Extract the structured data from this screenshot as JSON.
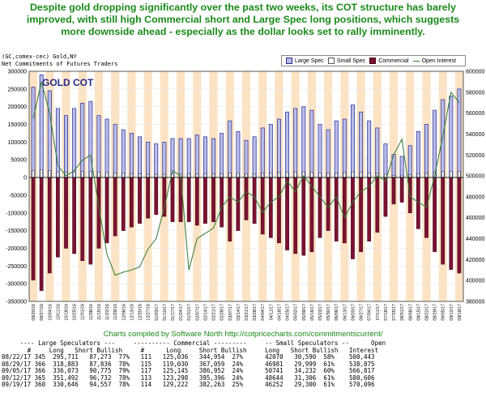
{
  "headline": [
    "Despite gold dropping significantly over the past two weeks, its COT structure has barely",
    "improved, with still high Commercial short and Large Spec long positions, which suggests",
    "more downside ahead - especially as the dollar looks set to rally imminently."
  ],
  "header": {
    "line1": "(GC,comex-cec) Gold,NY",
    "line2": "Net Commitments of Futures Traders"
  },
  "legend": [
    {
      "label": "Large Spec",
      "swatch": "ls"
    },
    {
      "label": "Small Spec",
      "swatch": "ss"
    },
    {
      "label": "Commercial",
      "swatch": "cm"
    },
    {
      "label": "Open Interest",
      "swatch": "oi"
    }
  ],
  "credit": "Charts compiled by Software North  http://cotpricecharts.com/commitmentscurrent/",
  "table": {
    "header1": "     ---- Large Speculators ---     ---------- Commercial ---------     -- Small Speculators --      Open",
    "header2": "       #     Long   Short Bullish     #      Long     Short Bullish     Long   Short Bullish   Interest",
    "rows": [
      "08/22/17 345  295,711   87,273  77%   111   125,036   344,954  27%      42070   30,590  58%    500,443",
      "08/29/17 366  318,883   87,836  78%   115   119,030   367,059  24%      46981   29,999  61%    538,875",
      "09/05/17 366  336,073   90,775  79%   117   125,145   386,952  24%      50741   34,232  60%    566,817",
      "09/12/17 365  351,492   96,732  78%   113   123,298   395,396  24%      48644   31,306  61%    580,606",
      "09/19/17 360  330,646   94,557  78%   114   129,222   382,263  25%      46252   29,300  61%    570,096"
    ]
  },
  "chart_data": {
    "type": "bar",
    "title": "GOLD COT",
    "x": [
      "09/20/16",
      "09/27/16",
      "10/04/16",
      "10/11/16",
      "10/18/16",
      "10/25/16",
      "11/01/16",
      "11/08/16",
      "11/15/16",
      "11/22/16",
      "11/29/16",
      "12/06/16",
      "12/13/16",
      "12/20/16",
      "12/27/16",
      "01/03/17",
      "01/10/17",
      "01/17/17",
      "01/24/17",
      "01/31/17",
      "02/07/17",
      "02/14/17",
      "02/21/17",
      "02/28/17",
      "03/07/17",
      "03/14/17",
      "03/21/17",
      "03/28/17",
      "04/04/17",
      "04/11/17",
      "04/18/17",
      "04/25/17",
      "05/02/17",
      "05/09/17",
      "05/16/17",
      "05/23/17",
      "05/30/17",
      "06/06/17",
      "06/13/17",
      "06/20/17",
      "06/27/17",
      "07/04/17",
      "07/11/17",
      "07/18/17",
      "07/25/17",
      "08/01/17",
      "08/08/17",
      "08/15/17",
      "08/22/17",
      "08/29/17",
      "09/05/17",
      "09/12/17",
      "09/19/17"
    ],
    "y_left": {
      "min": -350000,
      "max": 300000,
      "step": 50000
    },
    "y_right": {
      "min": 380000,
      "max": 600000,
      "step": 20000
    },
    "series": [
      {
        "name": "Large Spec",
        "color": "#b8bbe8",
        "values": [
          255000,
          290000,
          245000,
          195000,
          175000,
          195000,
          210000,
          215000,
          175000,
          165000,
          150000,
          135000,
          125000,
          115000,
          100000,
          95000,
          100000,
          110000,
          110000,
          110000,
          120000,
          115000,
          110000,
          125000,
          160000,
          130000,
          105000,
          115000,
          140000,
          150000,
          165000,
          185000,
          195000,
          200000,
          190000,
          150000,
          135000,
          160000,
          165000,
          205000,
          185000,
          160000,
          140000,
          95000,
          65000,
          60000,
          90000,
          130000,
          150000,
          190000,
          220000,
          230000,
          250000
        ]
      },
      {
        "name": "Small Spec",
        "color": "#ffffff",
        "values": [
          20000,
          22000,
          20000,
          16000,
          15000,
          16000,
          17000,
          17000,
          15000,
          14000,
          13000,
          12000,
          11000,
          10000,
          9000,
          9000,
          9000,
          10000,
          10000,
          10000,
          11000,
          11000,
          10000,
          11000,
          13000,
          12000,
          10000,
          10000,
          12000,
          13000,
          14000,
          15000,
          16000,
          16000,
          15000,
          13000,
          12000,
          13000,
          14000,
          16000,
          15000,
          13000,
          12000,
          9000,
          6000,
          5000,
          8000,
          11000,
          12000,
          15000,
          17000,
          17000,
          17000
        ]
      },
      {
        "name": "Commercial",
        "color": "#7a1230",
        "values": [
          -290000,
          -320000,
          -270000,
          -225000,
          -200000,
          -215000,
          -235000,
          -245000,
          -200000,
          -185000,
          -165000,
          -150000,
          -140000,
          -130000,
          -115000,
          -105000,
          -110000,
          -125000,
          -125000,
          -125000,
          -135000,
          -130000,
          -125000,
          -140000,
          -180000,
          -150000,
          -120000,
          -130000,
          -160000,
          -170000,
          -185000,
          -205000,
          -215000,
          -220000,
          -210000,
          -170000,
          -150000,
          -180000,
          -185000,
          -230000,
          -210000,
          -180000,
          -155000,
          -110000,
          -75000,
          -70000,
          -100000,
          -145000,
          -170000,
          -210000,
          -245000,
          -260000,
          -270000
        ]
      },
      {
        "name": "Open Interest",
        "color": "#2f7a2f",
        "values": [
          555000,
          590000,
          560000,
          510000,
          500000,
          505000,
          515000,
          520000,
          470000,
          425000,
          405000,
          408000,
          410000,
          413000,
          430000,
          440000,
          470000,
          505000,
          500000,
          410000,
          440000,
          445000,
          450000,
          470000,
          480000,
          475000,
          485000,
          480000,
          465000,
          475000,
          480000,
          495000,
          485000,
          500000,
          490000,
          480000,
          470000,
          480000,
          460000,
          475000,
          485000,
          490000,
          500000,
          495000,
          520000,
          535000,
          480000,
          475000,
          470000,
          500000,
          538000,
          580000,
          570000
        ]
      }
    ]
  },
  "colors": {
    "band": "#fbe3c4",
    "grid": "#e6e6e6"
  }
}
